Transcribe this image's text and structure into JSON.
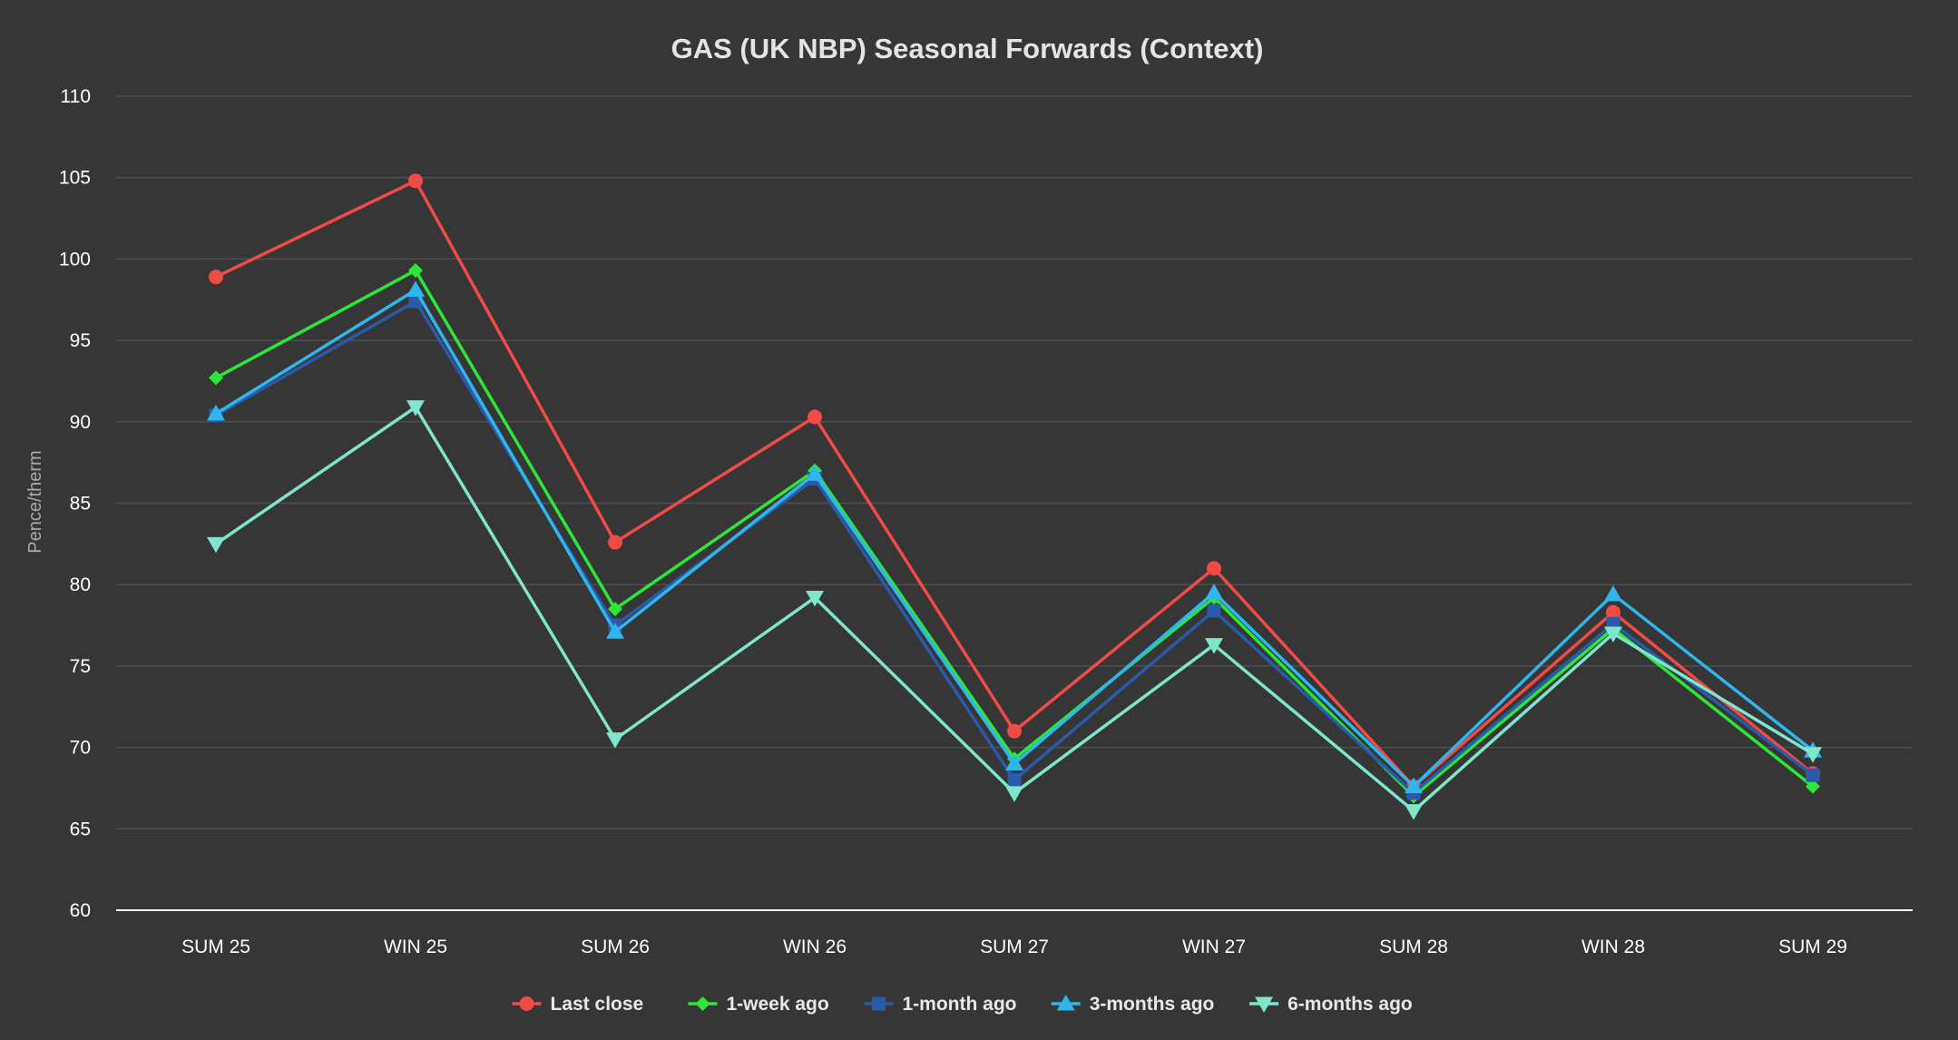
{
  "chart_data": {
    "type": "line",
    "title": "GAS (UK NBP) Seasonal Forwards (Context)",
    "xlabel": "",
    "ylabel": "Pence/therm",
    "categories": [
      "SUM 25",
      "WIN 25",
      "SUM 26",
      "WIN 26",
      "SUM 27",
      "WIN 27",
      "SUM 28",
      "WIN 28",
      "SUM 29"
    ],
    "ylim": [
      60,
      110
    ],
    "yticks": [
      60,
      65,
      70,
      75,
      80,
      85,
      90,
      95,
      100,
      105,
      110
    ],
    "grid": true,
    "legend_position": "bottom",
    "series": [
      {
        "name": "Last close",
        "color": "#f04b47",
        "marker": "circle",
        "values": [
          98.9,
          104.8,
          82.6,
          90.3,
          71.0,
          81.0,
          67.6,
          78.3,
          68.4
        ]
      },
      {
        "name": "1-week ago",
        "color": "#2ee63a",
        "marker": "diamond",
        "values": [
          92.7,
          99.3,
          78.5,
          87.0,
          69.3,
          79.2,
          67.0,
          77.3,
          67.6
        ]
      },
      {
        "name": "1-month ago",
        "color": "#2a5aa8",
        "marker": "square",
        "values": [
          90.4,
          97.4,
          77.5,
          86.5,
          68.0,
          78.4,
          67.2,
          77.6,
          68.3
        ]
      },
      {
        "name": "3-months ago",
        "color": "#2fb6ee",
        "marker": "triangle-up",
        "values": [
          90.5,
          98.1,
          77.1,
          86.8,
          69.0,
          79.5,
          67.6,
          79.4,
          69.8
        ]
      },
      {
        "name": "6-months ago",
        "color": "#7fe6cc",
        "marker": "triangle-down",
        "values": [
          82.5,
          90.9,
          70.5,
          79.2,
          67.2,
          76.3,
          66.1,
          77.0,
          69.6
        ]
      }
    ]
  }
}
